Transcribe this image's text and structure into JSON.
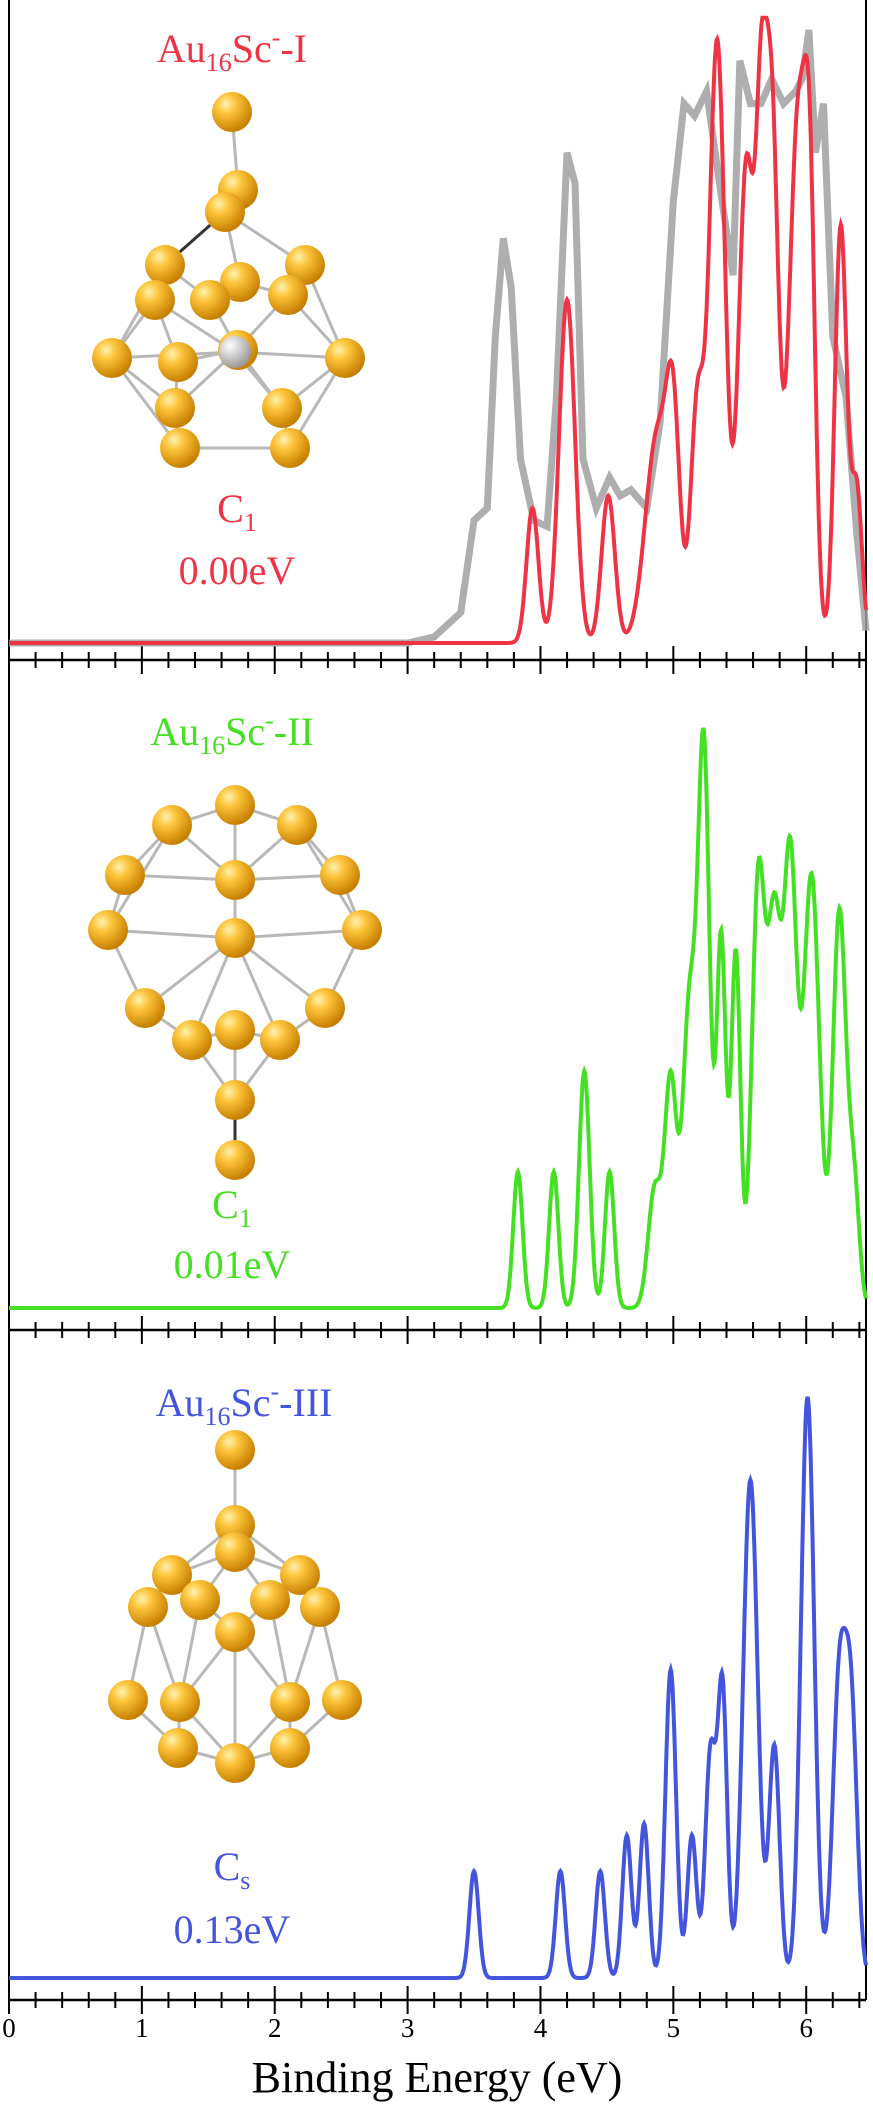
{
  "chart_data": {
    "type": "line",
    "xlabel": "Binding Energy (eV)",
    "xlim": [
      0,
      6.45
    ],
    "x_ticks": [
      "0",
      "1",
      "2",
      "3",
      "4",
      "5",
      "6"
    ],
    "grid": false,
    "legend": "none",
    "panels": [
      {
        "title_base": "Au",
        "title_sub": "16",
        "title_mid": "Sc",
        "title_sup": "-",
        "title_tail": "-I",
        "symmetry_base": "C",
        "symmetry_sub": "1",
        "energy": "0.00eV",
        "color": "#ee3344",
        "experiment_color": "#a0a0a0",
        "simulated_peaks": [
          {
            "x": 3.94,
            "h": 0.22,
            "w": 0.045
          },
          {
            "x": 4.2,
            "h": 0.56,
            "w": 0.06
          },
          {
            "x": 4.51,
            "h": 0.24,
            "w": 0.05
          },
          {
            "x": 4.88,
            "h": 0.34,
            "w": 0.09
          },
          {
            "x": 5.0,
            "h": 0.3,
            "w": 0.05
          },
          {
            "x": 5.18,
            "h": 0.38,
            "w": 0.05
          },
          {
            "x": 5.33,
            "h": 0.98,
            "w": 0.06
          },
          {
            "x": 5.55,
            "h": 0.78,
            "w": 0.06
          },
          {
            "x": 5.66,
            "h": 0.62,
            "w": 0.04
          },
          {
            "x": 5.74,
            "h": 0.84,
            "w": 0.05
          },
          {
            "x": 5.94,
            "h": 0.86,
            "w": 0.07
          },
          {
            "x": 6.03,
            "h": 0.48,
            "w": 0.04
          },
          {
            "x": 6.26,
            "h": 0.68,
            "w": 0.045
          },
          {
            "x": 6.38,
            "h": 0.25,
            "w": 0.04
          }
        ],
        "experiment_points": [
          [
            0,
            0
          ],
          [
            3.0,
            0
          ],
          [
            3.2,
            0.01
          ],
          [
            3.4,
            0.05
          ],
          [
            3.5,
            0.2
          ],
          [
            3.6,
            0.22
          ],
          [
            3.66,
            0.5
          ],
          [
            3.72,
            0.66
          ],
          [
            3.78,
            0.58
          ],
          [
            3.85,
            0.3
          ],
          [
            3.95,
            0.2
          ],
          [
            4.05,
            0.19
          ],
          [
            4.12,
            0.4
          ],
          [
            4.2,
            0.8
          ],
          [
            4.26,
            0.75
          ],
          [
            4.32,
            0.3
          ],
          [
            4.42,
            0.22
          ],
          [
            4.52,
            0.27
          ],
          [
            4.6,
            0.24
          ],
          [
            4.68,
            0.25
          ],
          [
            4.8,
            0.22
          ],
          [
            4.9,
            0.36
          ],
          [
            5.0,
            0.72
          ],
          [
            5.08,
            0.88
          ],
          [
            5.16,
            0.86
          ],
          [
            5.25,
            0.9
          ],
          [
            5.36,
            0.73
          ],
          [
            5.45,
            0.6
          ],
          [
            5.5,
            0.95
          ],
          [
            5.58,
            0.88
          ],
          [
            5.66,
            0.88
          ],
          [
            5.74,
            0.92
          ],
          [
            5.83,
            0.88
          ],
          [
            5.92,
            0.9
          ],
          [
            5.97,
            0.92
          ],
          [
            6.02,
            1.0
          ],
          [
            6.07,
            0.8
          ],
          [
            6.13,
            0.88
          ],
          [
            6.2,
            0.5
          ],
          [
            6.3,
            0.4
          ],
          [
            6.38,
            0.18
          ],
          [
            6.45,
            0.02
          ]
        ]
      },
      {
        "title_base": "Au",
        "title_sub": "16",
        "title_mid": "Sc",
        "title_sup": "-",
        "title_tail": "-II",
        "symmetry_base": "C",
        "symmetry_sub": "1",
        "energy": "0.01eV",
        "color": "#44e022",
        "simulated_peaks": [
          {
            "x": 3.83,
            "h": 0.23,
            "w": 0.035
          },
          {
            "x": 4.1,
            "h": 0.23,
            "w": 0.035
          },
          {
            "x": 4.33,
            "h": 0.4,
            "w": 0.04
          },
          {
            "x": 4.52,
            "h": 0.23,
            "w": 0.035
          },
          {
            "x": 4.86,
            "h": 0.2,
            "w": 0.05
          },
          {
            "x": 4.98,
            "h": 0.38,
            "w": 0.045
          },
          {
            "x": 5.12,
            "h": 0.5,
            "w": 0.05
          },
          {
            "x": 5.23,
            "h": 0.93,
            "w": 0.045
          },
          {
            "x": 5.36,
            "h": 0.62,
            "w": 0.035
          },
          {
            "x": 5.47,
            "h": 0.6,
            "w": 0.035
          },
          {
            "x": 5.64,
            "h": 0.72,
            "w": 0.05
          },
          {
            "x": 5.76,
            "h": 0.62,
            "w": 0.05
          },
          {
            "x": 5.88,
            "h": 0.74,
            "w": 0.05
          },
          {
            "x": 6.04,
            "h": 0.73,
            "w": 0.06
          },
          {
            "x": 6.25,
            "h": 0.67,
            "w": 0.05
          },
          {
            "x": 6.36,
            "h": 0.2,
            "w": 0.04
          }
        ]
      },
      {
        "title_base": "Au",
        "title_sub": "16",
        "title_mid": "Sc",
        "title_sup": "-",
        "title_tail": "-III",
        "symmetry_base": "C",
        "symmetry_sub": "s",
        "energy": "0.13eV",
        "color": "#4455dd",
        "simulated_peaks": [
          {
            "x": 3.5,
            "h": 0.18,
            "w": 0.035
          },
          {
            "x": 4.15,
            "h": 0.18,
            "w": 0.035
          },
          {
            "x": 4.45,
            "h": 0.18,
            "w": 0.035
          },
          {
            "x": 4.65,
            "h": 0.24,
            "w": 0.035
          },
          {
            "x": 4.78,
            "h": 0.26,
            "w": 0.035
          },
          {
            "x": 4.98,
            "h": 0.52,
            "w": 0.04
          },
          {
            "x": 5.14,
            "h": 0.24,
            "w": 0.035
          },
          {
            "x": 5.28,
            "h": 0.38,
            "w": 0.04
          },
          {
            "x": 5.37,
            "h": 0.48,
            "w": 0.035
          },
          {
            "x": 5.58,
            "h": 0.84,
            "w": 0.055
          },
          {
            "x": 5.76,
            "h": 0.39,
            "w": 0.04
          },
          {
            "x": 6.01,
            "h": 0.98,
            "w": 0.05
          },
          {
            "x": 6.25,
            "h": 0.5,
            "w": 0.05
          },
          {
            "x": 6.34,
            "h": 0.42,
            "w": 0.045
          }
        ]
      }
    ]
  },
  "molecule_colors": {
    "gold": "#f7b21e",
    "scandium": "#dddddd",
    "bond": "#b8b8b8"
  }
}
